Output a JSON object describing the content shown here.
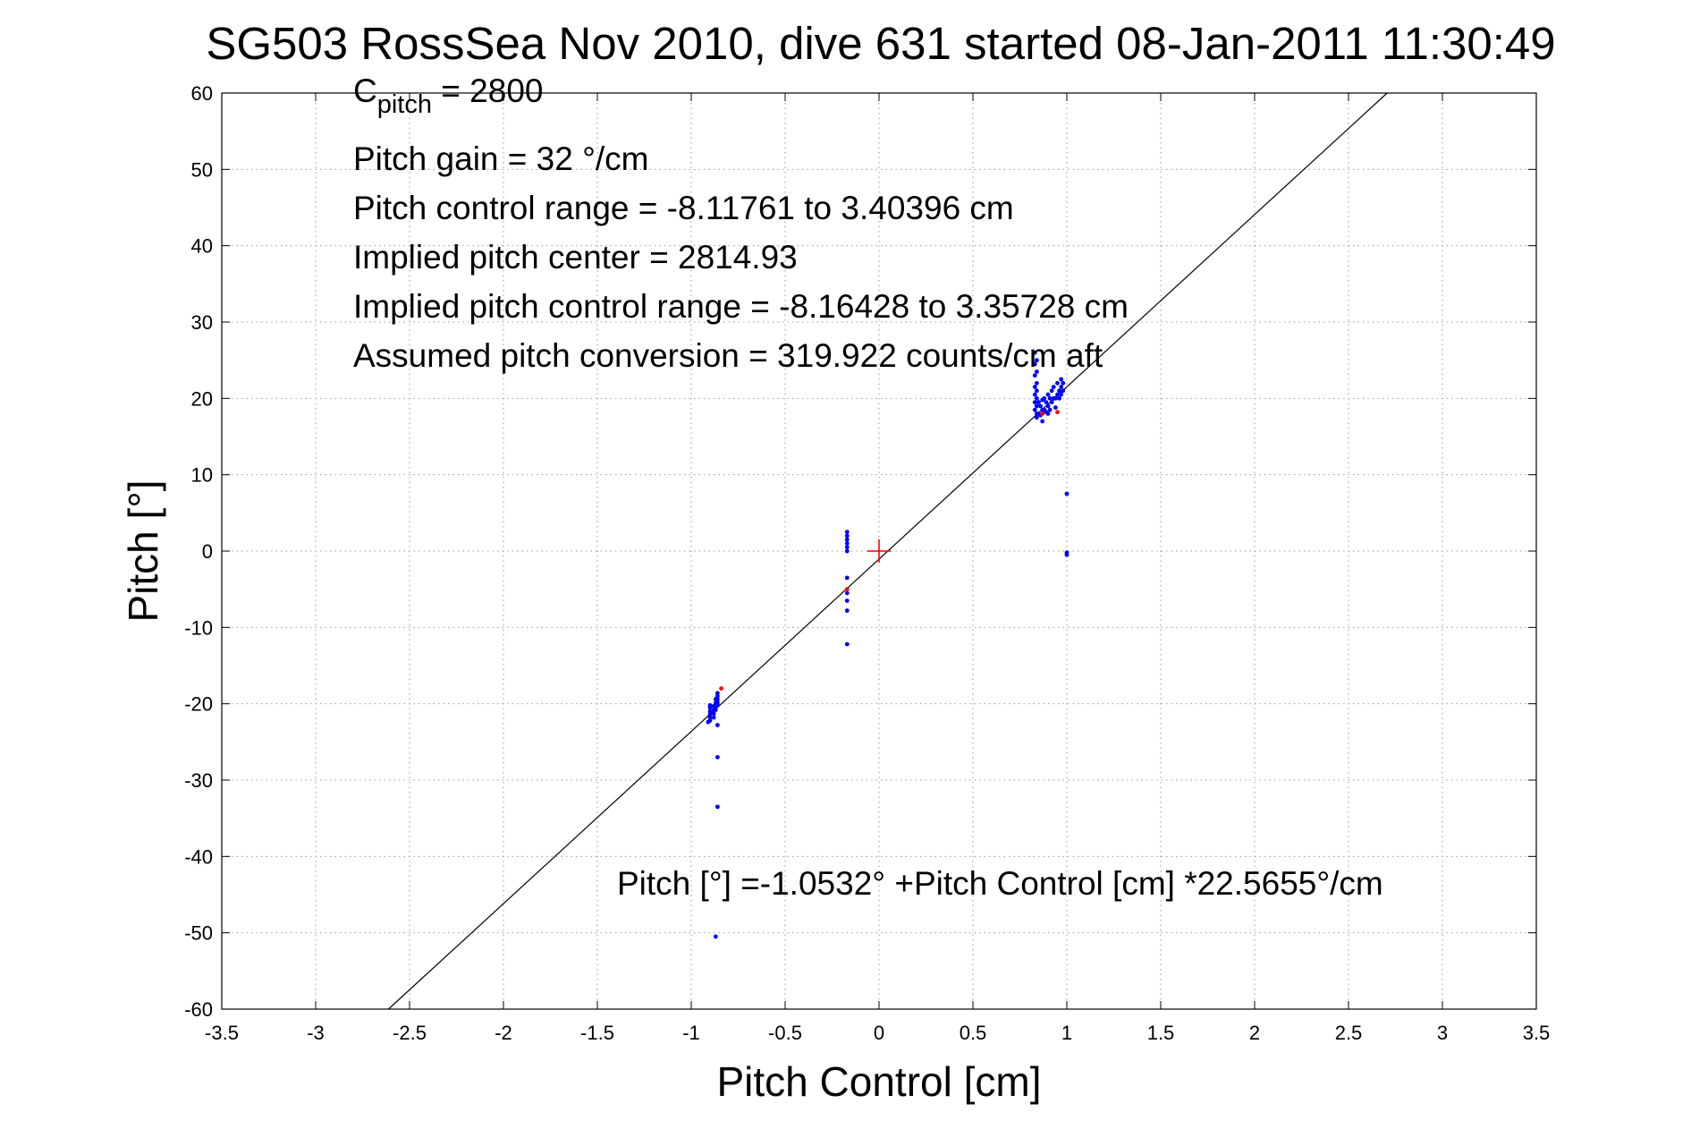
{
  "chart_data": {
    "type": "scatter",
    "title": "SG503 RossSea Nov 2010, dive 631 started 08-Jan-2011 11:30:49",
    "xlabel": "Pitch Control [cm]",
    "ylabel": "Pitch [°]",
    "xlim": [
      -3.5,
      3.5
    ],
    "ylim": [
      -60,
      60
    ],
    "xticks": [
      "-3.5",
      "-3",
      "-2.5",
      "-2",
      "-1.5",
      "-1",
      "-0.5",
      "0",
      "0.5",
      "1",
      "1.5",
      "2",
      "2.5",
      "3",
      "3.5"
    ],
    "yticks": [
      "60",
      "50",
      "40",
      "30",
      "20",
      "10",
      "0",
      "-10",
      "-20",
      "-30",
      "-40",
      "-50",
      "-60"
    ],
    "grid": true,
    "annotations": {
      "c_pitch_symbol": "C",
      "c_pitch_subscript": "pitch",
      "c_pitch_value": " = 2800",
      "pitch_gain": "Pitch gain = 32 °/cm",
      "pitch_control_range": "Pitch control range = -8.11761 to 3.40396 cm",
      "implied_pitch_center": "Implied pitch center = 2814.93",
      "implied_pitch_control_range": "Implied pitch control range = -8.16428 to 3.35728 cm",
      "assumed_pitch_conversion": "Assumed pitch conversion = 319.922 counts/cm aft",
      "fit_equation": "Pitch [°] =-1.0532° +Pitch Control [cm] *22.5655°/cm"
    },
    "fit_line": {
      "intercept": -1.0532,
      "slope": 22.5655,
      "color": "#000000"
    },
    "center_marker": {
      "x": 0,
      "y": 0,
      "color": "#ff0000"
    },
    "series": [
      {
        "color": "#0000ff",
        "x": [
          -0.9,
          -0.9,
          -0.9,
          -0.9,
          -0.9,
          -0.9,
          -0.91,
          -0.88,
          -0.88,
          -0.88,
          -0.88,
          -0.87,
          -0.87,
          -0.87,
          -0.87,
          -0.86,
          -0.86,
          -0.86,
          -0.86,
          -0.86,
          -0.86,
          -0.86,
          -0.86,
          -0.17,
          -0.17,
          -0.17,
          -0.17,
          -0.17,
          -0.17,
          -0.17,
          -0.17,
          -0.17,
          -0.17,
          -0.17,
          0.83,
          0.83,
          0.83,
          0.83,
          0.83,
          0.83,
          0.83,
          0.84,
          0.84,
          0.84,
          0.84,
          0.84,
          0.84,
          0.84,
          0.84,
          0.85,
          0.85,
          0.86,
          0.86,
          0.87,
          0.87,
          0.87,
          0.88,
          0.88,
          0.89,
          0.89,
          0.9,
          0.9,
          0.9,
          0.91,
          0.91,
          0.92,
          0.92,
          0.93,
          0.93,
          0.94,
          0.94,
          0.95,
          0.95,
          0.96,
          0.96,
          0.97,
          0.97,
          0.97,
          0.98,
          0.98,
          1.0,
          1.0,
          1.0
        ],
        "y": [
          -20.5,
          -21.0,
          -21.4,
          -21.8,
          -22.2,
          -20.2,
          -22.4,
          -20.3,
          -20.8,
          -21.3,
          -21.8,
          -19.4,
          -19.9,
          -20.4,
          -20.8,
          -18.6,
          -19.0,
          -19.4,
          -19.8,
          -20.2,
          -22.8,
          -27.0,
          -33.5,
          2.5,
          2.0,
          1.5,
          1.0,
          0.5,
          0.0,
          -3.5,
          -5.5,
          -6.5,
          -7.8,
          -12.2,
          26.0,
          24.5,
          23.0,
          21.5,
          20.5,
          19.5,
          18.5,
          25.0,
          23.5,
          22.0,
          21.0,
          20.0,
          19.0,
          18.0,
          17.5,
          19.5,
          18.0,
          19.0,
          17.8,
          19.8,
          18.5,
          17.0,
          20.0,
          18.5,
          19.5,
          18.2,
          20.5,
          19.0,
          18.0,
          20.0,
          18.5,
          21.0,
          19.5,
          21.5,
          20.0,
          20.0,
          18.8,
          22.0,
          20.5,
          21.0,
          20.0,
          22.5,
          21.5,
          20.5,
          22.0,
          21.0,
          7.5,
          -0.2,
          -0.5
        ]
      },
      {
        "color": "#ff0000",
        "x": [
          -0.84,
          -0.17,
          0.87,
          0.95
        ],
        "y": [
          -18.0,
          -5.0,
          18.0,
          18.2
        ]
      },
      {
        "color": "#0000ff",
        "x": [
          -0.87
        ],
        "y": [
          -50.5
        ]
      }
    ]
  }
}
